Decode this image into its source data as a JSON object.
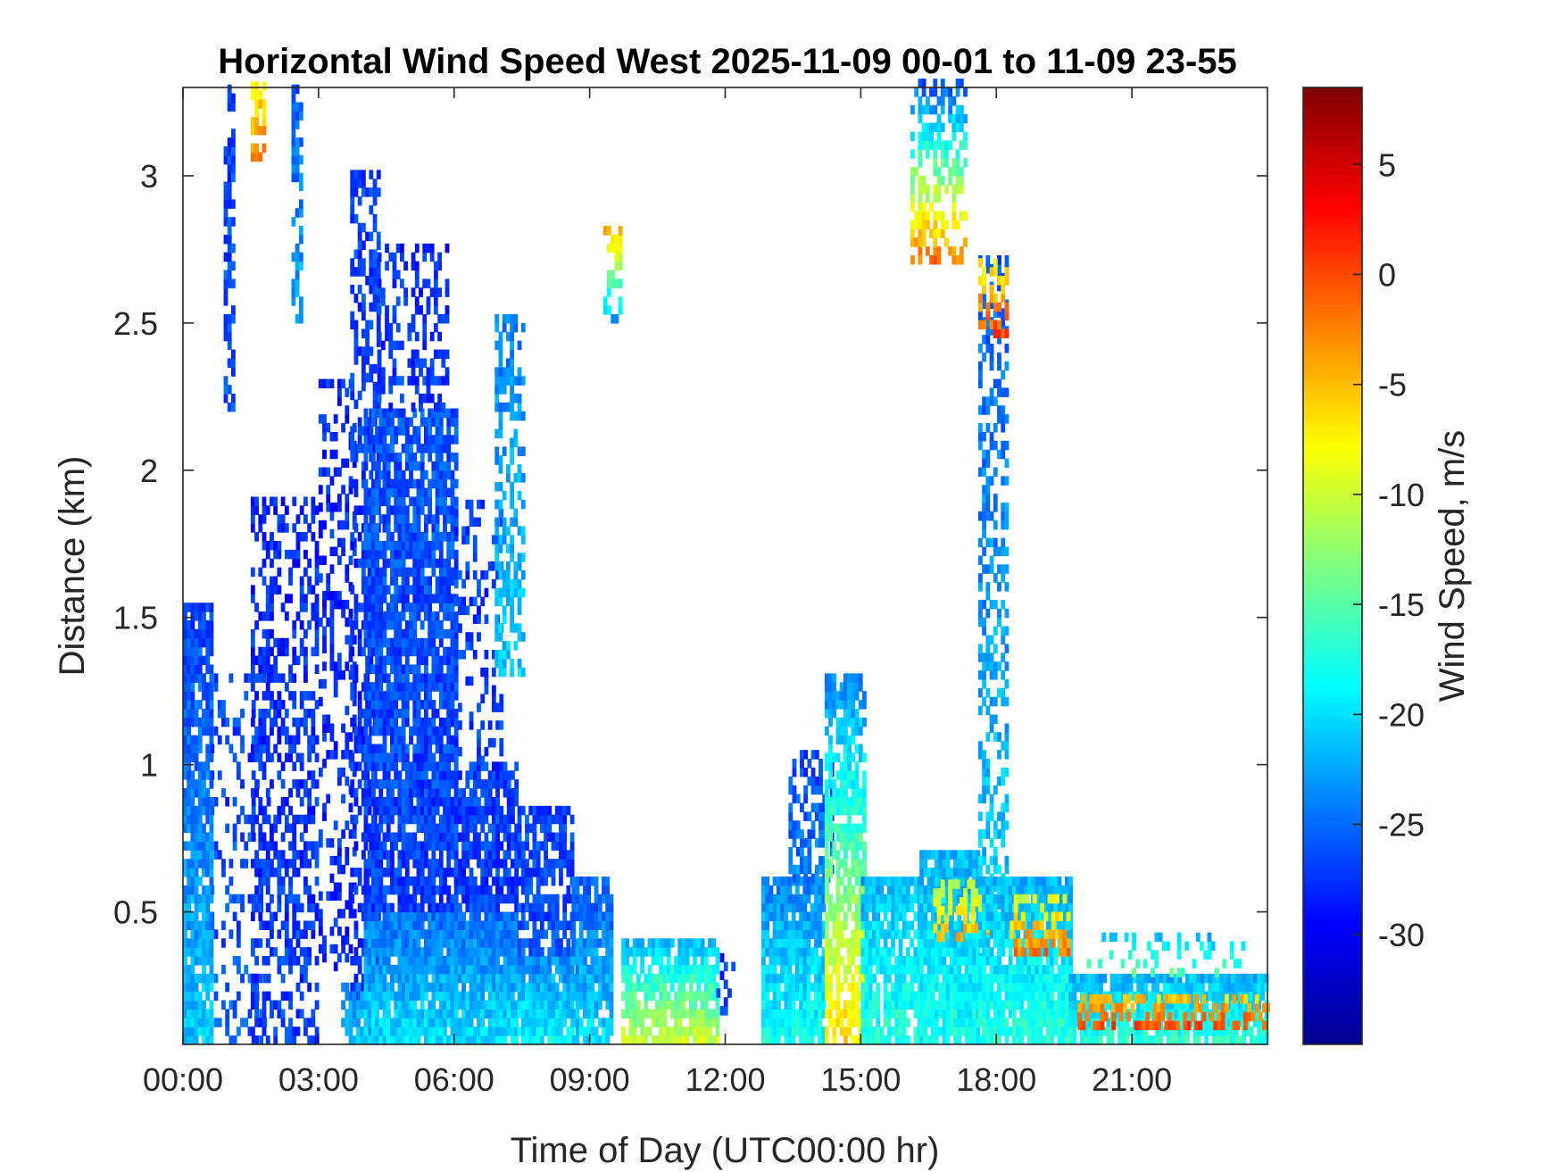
{
  "chart_data": {
    "type": "heatmap",
    "title": "Horizontal Wind Speed West 2025-11-09 00-01 to 11-09 23-55",
    "xlabel": "Time of Day (UTC00:00 hr)",
    "ylabel": "Distance (km)",
    "colorbar_label": "Wind Speed, m/s",
    "x_units": "hour",
    "xlim": [
      0,
      24
    ],
    "ylim": [
      0.05,
      3.3
    ],
    "clim": [
      -35,
      8.5
    ],
    "colormap": "jet",
    "x_ticks": [
      {
        "value": 0,
        "label": "00:00"
      },
      {
        "value": 3,
        "label": "03:00"
      },
      {
        "value": 6,
        "label": "06:00"
      },
      {
        "value": 9,
        "label": "09:00"
      },
      {
        "value": 12,
        "label": "12:00"
      },
      {
        "value": 15,
        "label": "15:00"
      },
      {
        "value": 18,
        "label": "18:00"
      },
      {
        "value": 21,
        "label": "21:00"
      }
    ],
    "y_ticks": [
      {
        "value": 0.5,
        "label": "0.5"
      },
      {
        "value": 1,
        "label": "1"
      },
      {
        "value": 1.5,
        "label": "1.5"
      },
      {
        "value": 2,
        "label": "2"
      },
      {
        "value": 2.5,
        "label": "2.5"
      },
      {
        "value": 3,
        "label": "3"
      }
    ],
    "colorbar_ticks": [
      {
        "value": 5,
        "label": "5"
      },
      {
        "value": 0,
        "label": "0"
      },
      {
        "value": -5,
        "label": "-5"
      },
      {
        "value": -10,
        "label": "-10"
      },
      {
        "value": -15,
        "label": "-15"
      },
      {
        "value": -20,
        "label": "-20"
      },
      {
        "value": -25,
        "label": "-25"
      },
      {
        "value": -30,
        "label": "-30"
      }
    ],
    "regions": [
      {
        "t0": 0.0,
        "t1": 0.65,
        "h0": 0.05,
        "h1": 1.55,
        "v0": -21,
        "v1": -27,
        "density": 0.85
      },
      {
        "t0": 0.9,
        "t1": 1.15,
        "h0": 2.2,
        "h1": 3.3,
        "v0": -26,
        "v1": -27,
        "density": 0.6
      },
      {
        "t0": 1.5,
        "t1": 1.75,
        "h0": 3.05,
        "h1": 3.3,
        "v0": -2,
        "v1": -8,
        "density": 0.7
      },
      {
        "t0": 0.6,
        "t1": 1.9,
        "h0": 0.05,
        "h1": 1.3,
        "v0": -26,
        "v1": -27,
        "density": 0.2
      },
      {
        "t0": 1.5,
        "t1": 3.0,
        "h0": 0.05,
        "h1": 1.9,
        "v0": -27,
        "v1": -28,
        "density": 0.45
      },
      {
        "t0": 2.4,
        "t1": 2.65,
        "h0": 2.5,
        "h1": 3.3,
        "v0": -22,
        "v1": -26,
        "density": 0.55
      },
      {
        "t0": 3.0,
        "t1": 3.8,
        "h0": 0.3,
        "h1": 2.3,
        "v0": -28,
        "v1": -28,
        "density": 0.35
      },
      {
        "t0": 3.7,
        "t1": 4.3,
        "h0": 0.2,
        "h1": 3.0,
        "v0": -28,
        "v1": -27,
        "density": 0.5
      },
      {
        "t0": 3.5,
        "t1": 4.5,
        "h0": 0.05,
        "h1": 0.25,
        "v0": -21,
        "v1": -24,
        "density": 0.7
      },
      {
        "t0": 4.0,
        "t1": 6.0,
        "h0": 0.05,
        "h1": 0.5,
        "v0": -20,
        "v1": -25,
        "density": 0.92
      },
      {
        "t0": 4.0,
        "t1": 6.0,
        "h0": 0.5,
        "h1": 2.2,
        "v0": -27,
        "v1": -26,
        "density": 0.8
      },
      {
        "t0": 4.3,
        "t1": 5.8,
        "h0": 2.2,
        "h1": 2.75,
        "v0": -27,
        "v1": -28,
        "density": 0.35
      },
      {
        "t0": 6.0,
        "t1": 7.4,
        "h0": 0.05,
        "h1": 0.5,
        "v0": -20,
        "v1": -25,
        "density": 0.95
      },
      {
        "t0": 6.0,
        "t1": 7.4,
        "h0": 0.5,
        "h1": 1.0,
        "v0": -27,
        "v1": -27,
        "density": 0.82
      },
      {
        "t0": 6.0,
        "t1": 7.0,
        "h0": 1.0,
        "h1": 1.9,
        "v0": -27,
        "v1": -27,
        "density": 0.3
      },
      {
        "t0": 6.9,
        "t1": 7.5,
        "h0": 1.3,
        "h1": 2.5,
        "v0": -21,
        "v1": -24,
        "density": 0.5
      },
      {
        "t0": 7.4,
        "t1": 8.6,
        "h0": 0.05,
        "h1": 0.35,
        "v0": -19,
        "v1": -24,
        "density": 0.95
      },
      {
        "t0": 7.4,
        "t1": 8.6,
        "h0": 0.35,
        "h1": 0.85,
        "v0": -26,
        "v1": -27,
        "density": 0.75
      },
      {
        "t0": 8.6,
        "t1": 9.5,
        "h0": 0.05,
        "h1": 0.6,
        "v0": -20,
        "v1": -26,
        "density": 0.85
      },
      {
        "t0": 9.3,
        "t1": 9.7,
        "h0": 2.5,
        "h1": 2.8,
        "v0": -22,
        "v1": -5,
        "density": 0.5
      },
      {
        "t0": 9.7,
        "t1": 11.8,
        "h0": 0.05,
        "h1": 0.4,
        "v0": -10,
        "v1": -22,
        "density": 0.8
      },
      {
        "t0": 11.8,
        "t1": 12.2,
        "h0": 0.15,
        "h1": 0.35,
        "v0": -27,
        "v1": -28,
        "density": 0.3
      },
      {
        "t0": 12.8,
        "t1": 14.2,
        "h0": 0.05,
        "h1": 0.6,
        "v0": -18,
        "v1": -24,
        "density": 0.92
      },
      {
        "t0": 13.4,
        "t1": 14.4,
        "h0": 0.6,
        "h1": 1.05,
        "v0": -24,
        "v1": -27,
        "density": 0.55
      },
      {
        "t0": 14.2,
        "t1": 15.1,
        "h0": 0.05,
        "h1": 1.3,
        "v0": -6,
        "v1": -24,
        "density": 0.75
      },
      {
        "t0": 15.0,
        "t1": 16.3,
        "h0": 0.05,
        "h1": 0.6,
        "v0": -17,
        "v1": -22,
        "density": 0.88
      },
      {
        "t0": 16.3,
        "t1": 17.6,
        "h0": 0.05,
        "h1": 0.7,
        "v0": -18,
        "v1": -22,
        "density": 0.92
      },
      {
        "t0": 16.6,
        "t1": 18.0,
        "h0": 0.4,
        "h1": 0.6,
        "v0": -4,
        "v1": -12,
        "density": 0.45
      },
      {
        "t0": 16.1,
        "t1": 17.3,
        "h0": 2.7,
        "h1": 3.3,
        "v0": -2,
        "v1": -26,
        "density": 0.55
      },
      {
        "t0": 17.6,
        "t1": 18.2,
        "h0": 0.3,
        "h1": 2.7,
        "v0": -20,
        "v1": -26,
        "density": 0.45
      },
      {
        "t0": 17.6,
        "t1": 18.2,
        "h0": 2.45,
        "h1": 2.7,
        "v0": 0,
        "v1": -8,
        "density": 0.5
      },
      {
        "t0": 17.6,
        "t1": 19.6,
        "h0": 0.05,
        "h1": 0.6,
        "v0": -17,
        "v1": -22,
        "density": 0.92
      },
      {
        "t0": 18.3,
        "t1": 19.6,
        "h0": 0.35,
        "h1": 0.55,
        "v0": -2,
        "v1": -10,
        "density": 0.5
      },
      {
        "t0": 19.6,
        "t1": 24.0,
        "h0": 0.05,
        "h1": 0.28,
        "v0": -17,
        "v1": -22,
        "density": 0.9
      },
      {
        "t0": 19.8,
        "t1": 24.0,
        "h0": 0.1,
        "h1": 0.2,
        "v0": 0,
        "v1": -6,
        "density": 0.45
      },
      {
        "t0": 20.0,
        "t1": 23.5,
        "h0": 0.28,
        "h1": 0.42,
        "v0": -15,
        "v1": -22,
        "density": 0.2
      }
    ]
  }
}
